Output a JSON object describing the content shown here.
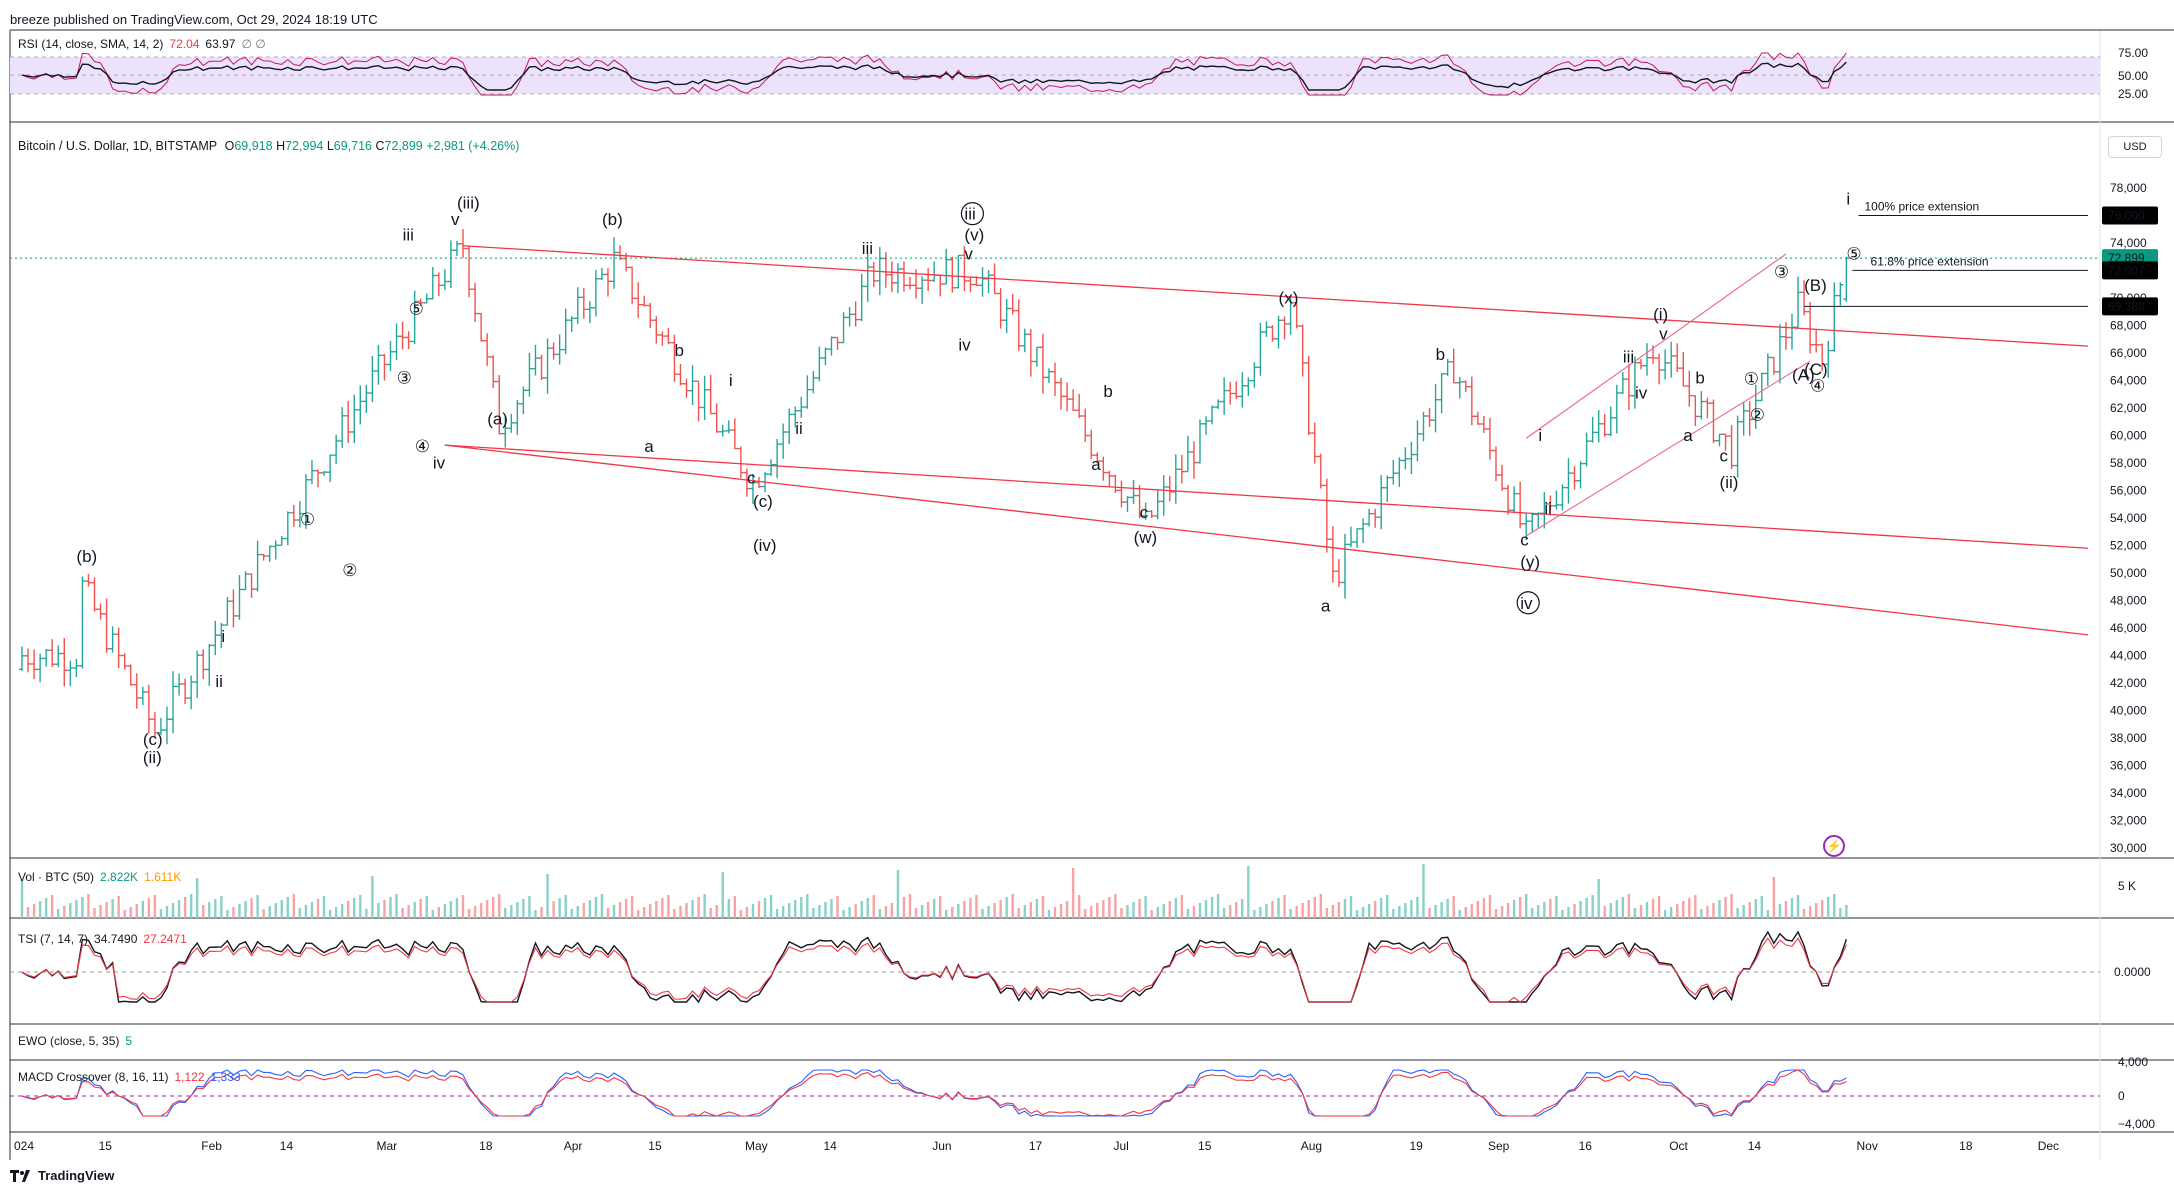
{
  "header": {
    "publisher": "breeze published on TradingView.com, Oct 29, 2024 18:19 UTC"
  },
  "symbol": {
    "name": "Bitcoin / U.S. Dollar, 1D, BITSTAMP",
    "o_label": "O",
    "o": "69,918",
    "h_label": "H",
    "h": "72,994",
    "l_label": "L",
    "l": "69,716",
    "c_label": "C",
    "c": "72,899",
    "chg": "+2,981 (+4.26%)"
  },
  "currency": "USD",
  "panes": {
    "rsi": {
      "label": "RSI (14, close, SMA, 14, 2)",
      "v1": "72.04",
      "v2": "63.97",
      "icons": "∅ ∅",
      "ticks": [
        "75.00",
        "50.00",
        "25.00"
      ]
    },
    "vol": {
      "label": "Vol · BTC (50)",
      "v1": "2.822K",
      "v2": "1.611K",
      "tick": "5 K"
    },
    "tsi": {
      "label": "TSI (7, 14, 7)",
      "v1": "34.7490",
      "v2": "27.2471",
      "tick": "0.0000"
    },
    "ewo": {
      "label": "EWO (close, 5, 35)",
      "v1": "5"
    },
    "macd": {
      "label": "MACD Crossover (8, 16, 11)",
      "v1": "1,122",
      "v2": "1,333",
      "ticks": [
        "4,000",
        "0",
        "−4,000"
      ]
    }
  },
  "price_axis": {
    "ticks": [
      "78,000",
      "76,000",
      "74,000",
      "72,000",
      "70,000",
      "68,000",
      "66,000",
      "64,000",
      "62,000",
      "60,000",
      "58,000",
      "56,000",
      "54,000",
      "52,000",
      "50,000",
      "48,000",
      "46,000",
      "44,000",
      "42,000",
      "40,000",
      "38,000",
      "36,000",
      "34,000",
      "32,000",
      "30,000"
    ],
    "badges": [
      {
        "text": "76,000",
        "color": "#000000"
      },
      {
        "text": "72,899",
        "color": "#089981"
      },
      {
        "text": "72,007",
        "color": "#000000"
      },
      {
        "text": "69,388",
        "color": "#000000"
      }
    ]
  },
  "time_axis": [
    "024",
    "15",
    "Feb",
    "14",
    "Mar",
    "18",
    "Apr",
    "15",
    "May",
    "14",
    "Jun",
    "17",
    "Jul",
    "15",
    "Aug",
    "19",
    "Sep",
    "16",
    "Oct",
    "14",
    "Nov",
    "18",
    "Dec"
  ],
  "annotations": {
    "ext100": "100% price extension",
    "ext618": "61.8% price extension"
  },
  "wave_labels": [
    "(b)",
    "(c)",
    "(ii)",
    "i",
    "ii",
    "①",
    "②",
    "③",
    "④",
    "⑤",
    "iii",
    "v",
    "iv",
    "(iii)",
    "(a)",
    "(b)",
    "a",
    "b",
    "i",
    "ii",
    "c",
    "(c)",
    "(iv)",
    "iii",
    "v",
    "(v)",
    "ⓘⓘⓘ",
    "iv",
    "b",
    "a",
    "c",
    "(w)",
    "(x)",
    "a",
    "b",
    "i",
    "ii",
    "c",
    "(y)",
    "ⓘⓥ",
    "iii",
    "v",
    "(i)",
    "iv",
    "b",
    "a",
    "c",
    "(ii)",
    "①",
    "②",
    "③",
    "(B)",
    "(A)",
    "(C)",
    "④",
    "⑤",
    "i"
  ],
  "footer": {
    "brand": "TradingView"
  },
  "chart_data": {
    "type": "candlestick",
    "title": "Bitcoin / U.S. Dollar, 1D, BITSTAMP",
    "ylim": [
      30000,
      78000
    ],
    "x_range": [
      "2024-01-01",
      "2024-12-08"
    ],
    "ohlc_last": {
      "open": 69918,
      "high": 72994,
      "low": 69716,
      "close": 72899
    },
    "key_points": [
      {
        "date": "2024-01-11",
        "price": 49000
      },
      {
        "date": "2024-01-23",
        "price": 38500
      },
      {
        "date": "2024-02-28",
        "price": 64000
      },
      {
        "date": "2024-03-14",
        "price": 73800
      },
      {
        "date": "2024-03-20",
        "price": 60800
      },
      {
        "date": "2024-04-08",
        "price": 72700
      },
      {
        "date": "2024-05-01",
        "price": 56500
      },
      {
        "date": "2024-05-21",
        "price": 71900
      },
      {
        "date": "2024-06-07",
        "price": 71900
      },
      {
        "date": "2024-07-05",
        "price": 53500
      },
      {
        "date": "2024-07-29",
        "price": 70000
      },
      {
        "date": "2024-08-05",
        "price": 49500
      },
      {
        "date": "2024-08-25",
        "price": 65000
      },
      {
        "date": "2024-09-06",
        "price": 52600
      },
      {
        "date": "2024-09-27",
        "price": 66500
      },
      {
        "date": "2024-10-10",
        "price": 58900
      },
      {
        "date": "2024-10-21",
        "price": 69400
      },
      {
        "date": "2024-10-25",
        "price": 65500
      },
      {
        "date": "2024-10-29",
        "price": 72899
      }
    ],
    "levels": [
      {
        "name": "100% price extension",
        "price": 76000
      },
      {
        "name": "61.8% price extension",
        "price": 72007
      },
      {
        "price": 69388
      }
    ]
  }
}
